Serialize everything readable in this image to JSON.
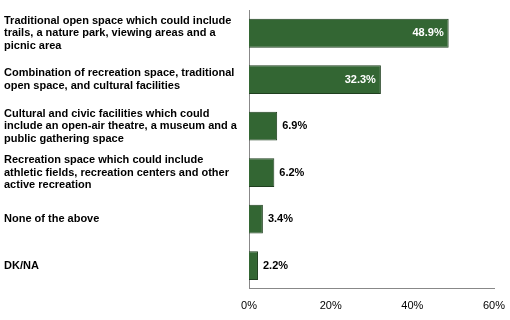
{
  "chart_data": {
    "type": "bar",
    "orientation": "horizontal",
    "categories": [
      "Traditional open space which could include trails, a nature park, viewing areas and a picnic area",
      "Combination of recreation space, traditional open space, and cultural facilities",
      "Cultural and civic facilities which could include an open-air theatre, a museum and a public gathering space",
      "Recreation space which could include athletic fields, recreation centers and other active recreation",
      "None of the above",
      "DK/NA"
    ],
    "values": [
      48.9,
      32.3,
      6.9,
      6.2,
      3.4,
      2.2
    ],
    "value_labels": [
      "48.9%",
      "32.3%",
      "6.9%",
      "6.2%",
      "3.4%",
      "2.2%"
    ],
    "data_labels": true,
    "color": "#336633",
    "xlim": [
      0,
      60
    ],
    "xticks": [
      {
        "value": 0,
        "label": "0%"
      },
      {
        "value": 20,
        "label": "20%"
      },
      {
        "value": 40,
        "label": "40%"
      },
      {
        "value": 60,
        "label": "60%"
      }
    ],
    "grid": false
  }
}
